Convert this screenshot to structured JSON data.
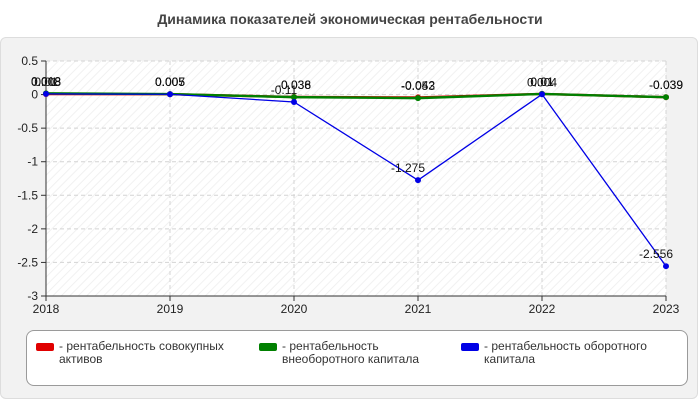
{
  "chart_data": {
    "type": "line",
    "title": "Динамика показателей экономическая рентабельности",
    "xlabel": "",
    "ylabel": "",
    "x": [
      "2018",
      "2019",
      "2020",
      "2021",
      "2022",
      "2023"
    ],
    "ylim": [
      -3,
      0.5
    ],
    "yticks": [
      "0.5",
      "0",
      "-0.5",
      "-1",
      "-1.5",
      "-2",
      "-2.5",
      "-3"
    ],
    "grid": true,
    "legend_position": "bottom",
    "series": [
      {
        "name": "рентабельность совокупных активов",
        "color": "#e00000",
        "values": [
          0.008,
          0.005,
          -0.036,
          -0.042,
          0.01,
          -0.039
        ],
        "labels": [
          "0.008",
          "0.005",
          "-0.036",
          "-0.042",
          "0.01",
          "-0.039"
        ]
      },
      {
        "name": "рентабельность внеоборотного капитала",
        "color": "#008000",
        "values": [
          0.018,
          0.007,
          -0.038,
          -0.053,
          0.01,
          -0.039
        ],
        "labels": [
          "0.018",
          "0.007",
          "-0.038",
          "-0.053",
          "0.01",
          "-0.039"
        ]
      },
      {
        "name": "рентабельность оборотного капитала",
        "color": "#0000e6",
        "values": [
          0.01,
          0.005,
          -0.11,
          -1.275,
          0.004,
          -2.556
        ],
        "labels": [
          "0.01",
          "0.005",
          "-0.11",
          "-1.275",
          "0.004",
          "-2.556"
        ]
      }
    ]
  }
}
